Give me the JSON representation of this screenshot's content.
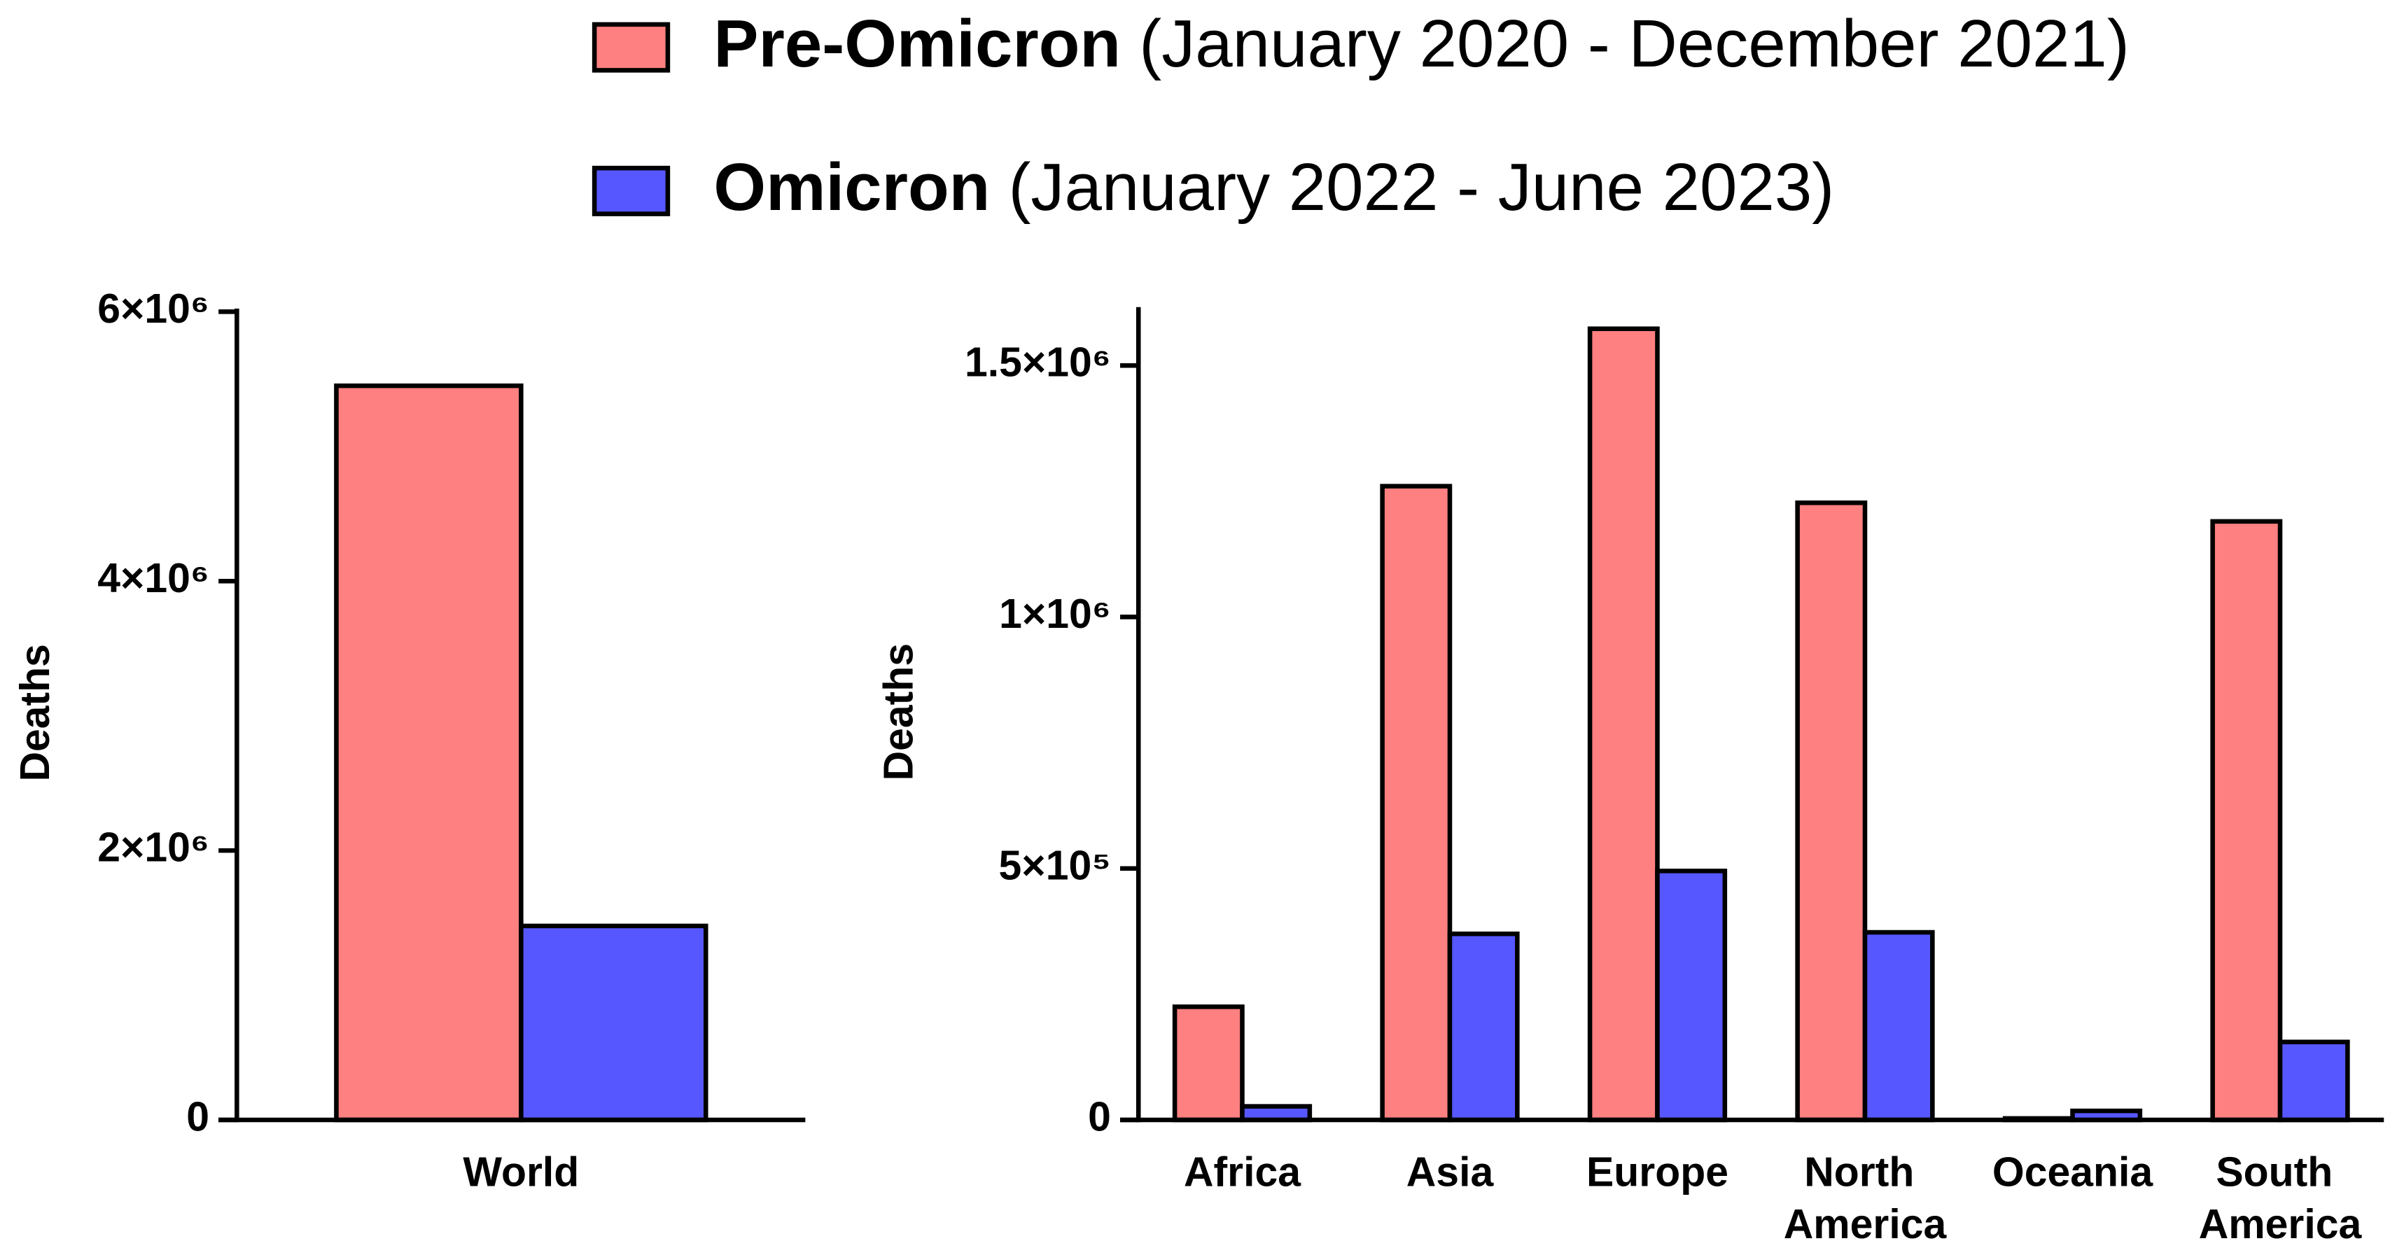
{
  "chart_data": [
    {
      "type": "bar",
      "ylabel": "Deaths",
      "categories": [
        "World"
      ],
      "series": [
        {
          "name": "Pre-Omicron",
          "period": "(January 2020 - December 2021)",
          "color": "#ff8080",
          "values": [
            5450000
          ]
        },
        {
          "name": "Omicron",
          "period": "(January 2022 - June 2023)",
          "color": "#5757ff",
          "values": [
            1440000
          ]
        }
      ],
      "ylim": [
        0,
        6000000
      ],
      "yticks": [
        0,
        {
          "value": 2000000,
          "label": "2×10⁶"
        },
        {
          "value": 4000000,
          "label": "4×10⁶"
        },
        {
          "value": 6000000,
          "label": "6×10⁶"
        }
      ]
    },
    {
      "type": "bar",
      "ylabel": "Deaths",
      "categories": [
        "Africa",
        "Asia",
        "Europe",
        "North America",
        "Oceania",
        "South America"
      ],
      "series": [
        {
          "color": "#ff8080",
          "values": [
            225000,
            1260000,
            1573000,
            1227000,
            3000,
            1190000
          ]
        },
        {
          "color": "#5757ff",
          "values": [
            27000,
            370000,
            495000,
            373000,
            18000,
            155000
          ]
        }
      ],
      "ylim": [
        0,
        1610000
      ],
      "yticks": [
        0,
        {
          "value": 500000,
          "label": "5×10⁵"
        },
        {
          "value": 1000000,
          "label": "1×10⁶"
        },
        {
          "value": 1500000,
          "label": "1.5×10⁶"
        }
      ]
    }
  ]
}
